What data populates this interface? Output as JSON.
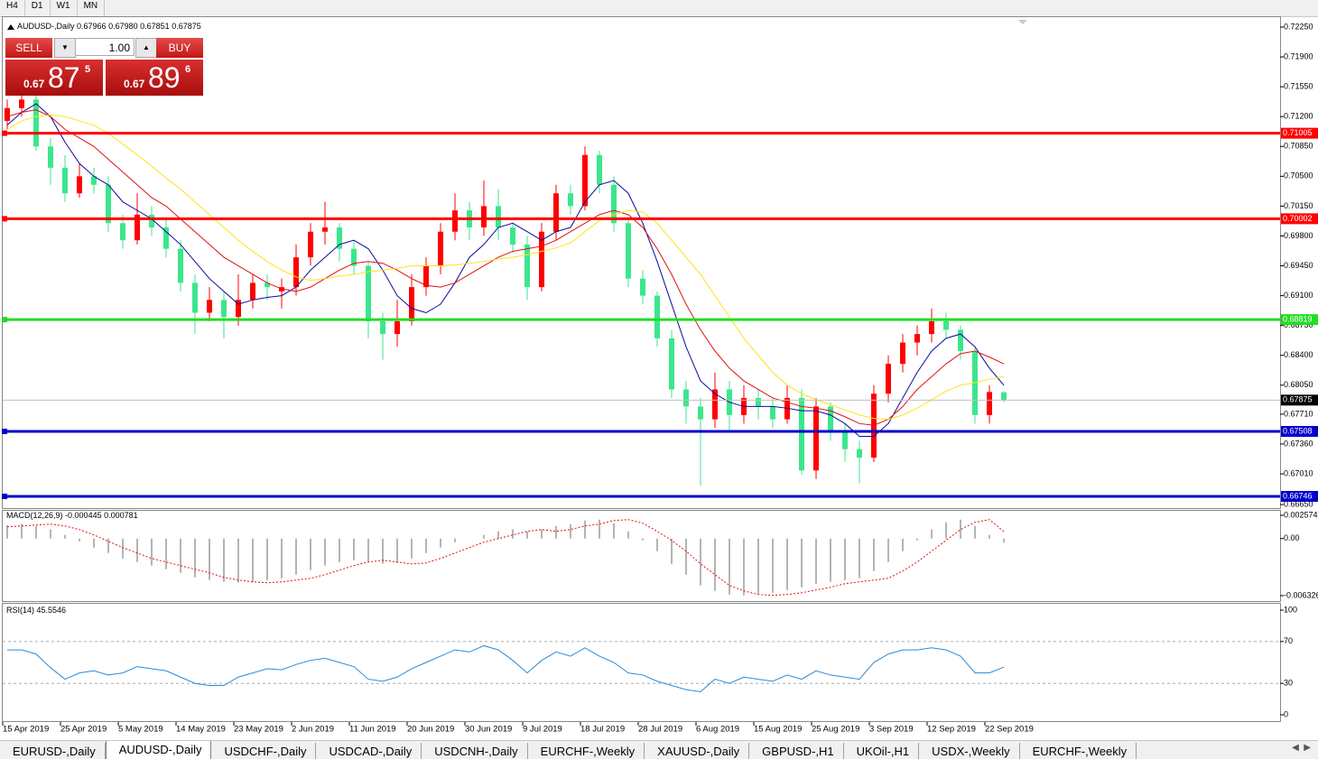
{
  "timeframes": [
    "H4",
    "D1",
    "W1",
    "MN"
  ],
  "header": {
    "title": "AUDUSD-,Daily",
    "ohlc": [
      "0.67966",
      "0.67980",
      "0.67851",
      "0.67875"
    ]
  },
  "trade_panel": {
    "sell": "SELL",
    "buy": "BUY",
    "lot": "1.00",
    "sell_price": {
      "prefix": "0.67",
      "big": "87",
      "small": "5"
    },
    "buy_price": {
      "prefix": "0.67",
      "big": "89",
      "small": "6"
    }
  },
  "tabs": {
    "items": [
      "EURUSD-,Daily",
      "AUDUSD-,Daily",
      "USDCHF-,Daily",
      "USDCAD-,Daily",
      "USDCNH-,Daily",
      "EURCHF-,Weekly",
      "XAUUSD-,Daily",
      "GBPUSD-,H1",
      "UKOil-,H1",
      "USDX-,Weekly",
      "EURCHF-,Weekly"
    ],
    "active": 1
  },
  "chart_data": {
    "type": "candlestick",
    "categories": [
      "15 Apr 2019",
      null,
      null,
      null,
      "25 Apr 2019",
      null,
      null,
      null,
      "5 May 2019",
      null,
      null,
      null,
      "14 May 2019",
      null,
      null,
      null,
      "23 May 2019",
      null,
      null,
      null,
      "2 Jun 2019",
      null,
      null,
      null,
      "11 Jun 2019",
      null,
      null,
      null,
      "20 Jun 2019",
      null,
      null,
      null,
      "30 Jun 2019",
      null,
      null,
      null,
      "9 Jul 2019",
      null,
      null,
      null,
      "18 Jul 2019",
      null,
      null,
      null,
      "28 Jul 2019",
      null,
      null,
      null,
      "6 Aug 2019",
      null,
      null,
      null,
      "15 Aug 2019",
      null,
      null,
      null,
      "25 Aug 2019",
      null,
      null,
      null,
      "3 Sep 2019",
      null,
      null,
      null,
      "12 Sep 2019",
      null,
      null,
      null,
      "22 Sep 2019",
      null
    ],
    "up_color": "#ff0000",
    "down_color": "#3ce68c",
    "candles": {
      "open": [
        0.7115,
        0.713,
        0.714,
        0.7085,
        0.706,
        0.703,
        0.705,
        0.704,
        0.6995,
        0.6975,
        0.7005,
        0.699,
        0.6965,
        0.6925,
        0.689,
        0.6905,
        0.6885,
        0.6905,
        0.6925,
        0.6915,
        0.692,
        0.6955,
        0.6985,
        0.699,
        0.6965,
        0.6945,
        0.688,
        0.6865,
        0.688,
        0.692,
        0.6945,
        0.6985,
        0.701,
        0.699,
        0.7015,
        0.699,
        0.697,
        0.692,
        0.6985,
        0.703,
        0.7015,
        0.7075,
        0.704,
        0.6995,
        0.693,
        0.691,
        0.686,
        0.68,
        0.678,
        0.6765,
        0.68,
        0.677,
        0.679,
        0.678,
        0.6765,
        0.679,
        0.6705,
        0.678,
        0.675,
        0.673,
        0.672,
        0.6795,
        0.683,
        0.6855,
        0.6865,
        0.688,
        0.687,
        0.6845,
        0.677,
        0.67966
      ],
      "high": [
        0.714,
        0.715,
        0.7148,
        0.7095,
        0.7075,
        0.7065,
        0.706,
        0.705,
        0.7005,
        0.703,
        0.7015,
        0.7,
        0.6975,
        0.6935,
        0.692,
        0.6915,
        0.6935,
        0.6935,
        0.6935,
        0.693,
        0.697,
        0.6995,
        0.702,
        0.6995,
        0.6975,
        0.695,
        0.689,
        0.6905,
        0.6935,
        0.6955,
        0.6995,
        0.703,
        0.702,
        0.7045,
        0.7035,
        0.6995,
        0.698,
        0.6995,
        0.704,
        0.704,
        0.7085,
        0.708,
        0.705,
        0.7,
        0.694,
        0.6915,
        0.687,
        0.681,
        0.679,
        0.682,
        0.681,
        0.6805,
        0.68,
        0.679,
        0.6805,
        0.68,
        0.679,
        0.6785,
        0.676,
        0.674,
        0.6805,
        0.684,
        0.6865,
        0.6875,
        0.6895,
        0.689,
        0.6875,
        0.685,
        0.6805,
        0.6798
      ],
      "low": [
        0.7105,
        0.712,
        0.708,
        0.704,
        0.702,
        0.7025,
        0.703,
        0.6985,
        0.6965,
        0.697,
        0.698,
        0.6955,
        0.6915,
        0.6865,
        0.688,
        0.686,
        0.6875,
        0.6895,
        0.6905,
        0.6895,
        0.691,
        0.6945,
        0.697,
        0.695,
        0.6935,
        0.686,
        0.6835,
        0.685,
        0.6875,
        0.691,
        0.6935,
        0.6975,
        0.6975,
        0.698,
        0.6975,
        0.696,
        0.6905,
        0.6915,
        0.6975,
        0.7005,
        0.701,
        0.703,
        0.6985,
        0.692,
        0.69,
        0.685,
        0.679,
        0.676,
        0.6687,
        0.6755,
        0.675,
        0.676,
        0.6765,
        0.6755,
        0.676,
        0.67,
        0.6695,
        0.674,
        0.6715,
        0.669,
        0.6715,
        0.6785,
        0.682,
        0.684,
        0.6855,
        0.686,
        0.6835,
        0.676,
        0.676,
        0.67851
      ],
      "close": [
        0.713,
        0.714,
        0.7085,
        0.706,
        0.703,
        0.705,
        0.704,
        0.6995,
        0.6975,
        0.7005,
        0.699,
        0.6965,
        0.6925,
        0.689,
        0.6905,
        0.6885,
        0.6905,
        0.6925,
        0.692,
        0.692,
        0.6955,
        0.6985,
        0.699,
        0.6965,
        0.6945,
        0.688,
        0.6865,
        0.688,
        0.692,
        0.6945,
        0.6985,
        0.701,
        0.699,
        0.7015,
        0.699,
        0.697,
        0.692,
        0.6985,
        0.703,
        0.7015,
        0.7075,
        0.704,
        0.6995,
        0.693,
        0.691,
        0.686,
        0.68,
        0.678,
        0.6765,
        0.68,
        0.677,
        0.679,
        0.678,
        0.6765,
        0.679,
        0.6705,
        0.678,
        0.675,
        0.673,
        0.672,
        0.6795,
        0.683,
        0.6855,
        0.6865,
        0.688,
        0.687,
        0.6845,
        0.677,
        0.6797,
        0.67875
      ]
    },
    "moving_averages": [
      {
        "color": "#0a0aa0",
        "values": [
          0.711,
          0.7125,
          0.7135,
          0.712,
          0.709,
          0.7065,
          0.705,
          0.704,
          0.702,
          0.701,
          0.7,
          0.6985,
          0.697,
          0.695,
          0.693,
          0.6915,
          0.69,
          0.6905,
          0.6908,
          0.691,
          0.692,
          0.694,
          0.6955,
          0.697,
          0.6975,
          0.6965,
          0.694,
          0.691,
          0.6895,
          0.689,
          0.69,
          0.6925,
          0.6955,
          0.697,
          0.699,
          0.6995,
          0.6985,
          0.6975,
          0.6985,
          0.699,
          0.702,
          0.704,
          0.7045,
          0.703,
          0.6995,
          0.695,
          0.69,
          0.685,
          0.681,
          0.6795,
          0.6785,
          0.678,
          0.678,
          0.678,
          0.6778,
          0.6775,
          0.6775,
          0.677,
          0.676,
          0.6745,
          0.6745,
          0.676,
          0.679,
          0.682,
          0.6845,
          0.686,
          0.6865,
          0.685,
          0.6825,
          0.6805
        ]
      },
      {
        "color": "#e01010",
        "values": [
          0.712,
          0.7125,
          0.7128,
          0.712,
          0.7105,
          0.7095,
          0.7085,
          0.707,
          0.7055,
          0.704,
          0.7025,
          0.7015,
          0.7,
          0.6985,
          0.697,
          0.6955,
          0.6945,
          0.6935,
          0.6925,
          0.6918,
          0.6915,
          0.692,
          0.693,
          0.694,
          0.6948,
          0.695,
          0.6948,
          0.694,
          0.693,
          0.6922,
          0.692,
          0.6925,
          0.6935,
          0.6945,
          0.6955,
          0.6962,
          0.6965,
          0.6968,
          0.6975,
          0.6985,
          0.6995,
          0.7005,
          0.701,
          0.7005,
          0.699,
          0.6965,
          0.6935,
          0.69,
          0.687,
          0.6845,
          0.6825,
          0.681,
          0.68,
          0.679,
          0.6785,
          0.678,
          0.6778,
          0.6775,
          0.6768,
          0.676,
          0.6758,
          0.6765,
          0.678,
          0.68,
          0.6815,
          0.683,
          0.6842,
          0.6845,
          0.6838,
          0.683
        ]
      },
      {
        "color": "#ffe21a",
        "values": [
          0.7105,
          0.7115,
          0.712,
          0.7122,
          0.712,
          0.7115,
          0.711,
          0.71,
          0.7088,
          0.7075,
          0.7062,
          0.7048,
          0.7035,
          0.702,
          0.7005,
          0.699,
          0.6975,
          0.6962,
          0.695,
          0.694,
          0.6932,
          0.6928,
          0.693,
          0.6933,
          0.6935,
          0.6938,
          0.694,
          0.6942,
          0.6945,
          0.6945,
          0.6945,
          0.6946,
          0.6948,
          0.695,
          0.6953,
          0.6955,
          0.6958,
          0.6962,
          0.6966,
          0.6972,
          0.6985,
          0.6998,
          0.7005,
          0.701,
          0.7008,
          0.6995,
          0.6975,
          0.6955,
          0.6935,
          0.691,
          0.6885,
          0.686,
          0.684,
          0.682,
          0.6805,
          0.6795,
          0.6788,
          0.6782,
          0.6776,
          0.677,
          0.6766,
          0.6765,
          0.677,
          0.6778,
          0.6788,
          0.6798,
          0.6805,
          0.6808,
          0.6812,
          0.6815
        ]
      }
    ],
    "levels": [
      {
        "value": 0.71005,
        "color": "#ff0000"
      },
      {
        "value": 0.70002,
        "color": "#ff0000"
      },
      {
        "value": 0.68819,
        "color": "#22dd22"
      },
      {
        "value": 0.67508,
        "color": "#0000cc"
      },
      {
        "value": 0.66746,
        "color": "#0000cc"
      }
    ],
    "ylim": [
      0.66619,
      0.72377
    ],
    "yticks": [
      {
        "value": 0.7225,
        "label": "0.72250"
      },
      {
        "value": 0.719,
        "label": "0.71900"
      },
      {
        "value": 0.7155,
        "label": "0.71550"
      },
      {
        "value": 0.712,
        "label": "0.71200"
      },
      {
        "value": 0.7085,
        "label": "0.70850"
      },
      {
        "value": 0.705,
        "label": "0.70500"
      },
      {
        "value": 0.7015,
        "label": "0.70150"
      },
      {
        "value": 0.698,
        "label": "0.69800"
      },
      {
        "value": 0.6945,
        "label": "0.69450"
      },
      {
        "value": 0.691,
        "label": "0.69100"
      },
      {
        "value": 0.6875,
        "label": "0.68750"
      },
      {
        "value": 0.684,
        "label": "0.68400"
      },
      {
        "value": 0.6805,
        "label": "0.68050"
      },
      {
        "value": 0.6771,
        "label": "0.67710"
      },
      {
        "value": 0.6736,
        "label": "0.67360"
      },
      {
        "value": 0.6701,
        "label": "0.67010"
      },
      {
        "value": 0.6665,
        "label": "0.66650"
      }
    ],
    "macd": {
      "title": "MACD(12,26,9)",
      "ylim": [
        -0.006826,
        0.003174
      ],
      "yticks": [
        0.002574,
        {
          "value": 0,
          "label": "0.00"
        },
        -0.006326
      ],
      "histogram": {
        "color": "#b4b4b4",
        "values": [
          0.0015,
          0.0016,
          0.0014,
          0.001,
          0.0004,
          -0.0003,
          -0.001,
          -0.0016,
          -0.0022,
          -0.0026,
          -0.003,
          -0.0034,
          -0.0038,
          -0.0043,
          -0.0046,
          -0.0048,
          -0.0049,
          -0.0048,
          -0.0046,
          -0.0044,
          -0.004,
          -0.0035,
          -0.003,
          -0.0026,
          -0.0024,
          -0.0026,
          -0.0028,
          -0.0027,
          -0.0022,
          -0.0016,
          -0.001,
          -0.0004,
          0.0,
          0.0004,
          0.0008,
          0.001,
          0.0008,
          0.001,
          0.0014,
          0.0016,
          0.002,
          0.0021,
          0.0017,
          0.0008,
          -0.0002,
          -0.0014,
          -0.0028,
          -0.004,
          -0.0052,
          -0.0058,
          -0.0062,
          -0.0063,
          -0.0062,
          -0.006,
          -0.0057,
          -0.0054,
          -0.005,
          -0.0048,
          -0.0046,
          -0.0044,
          -0.0036,
          -0.0026,
          -0.0014,
          -0.0002,
          0.001,
          0.0018,
          0.0021,
          0.0014,
          0.0004,
          -0.000445
        ]
      },
      "signal": {
        "color": "#e01010",
        "values": [
          0.0013,
          0.0014,
          0.0015,
          0.0016,
          0.0014,
          0.001,
          0.0004,
          -0.0003,
          -0.001,
          -0.0016,
          -0.0022,
          -0.0026,
          -0.003,
          -0.0034,
          -0.0038,
          -0.0043,
          -0.0046,
          -0.0048,
          -0.0049,
          -0.0048,
          -0.0046,
          -0.0044,
          -0.004,
          -0.0035,
          -0.003,
          -0.0026,
          -0.0024,
          -0.0026,
          -0.0028,
          -0.0027,
          -0.0022,
          -0.0016,
          -0.001,
          -0.0004,
          0.0,
          0.0004,
          0.0008,
          0.001,
          0.0008,
          0.001,
          0.0014,
          0.0016,
          0.002,
          0.0021,
          0.0017,
          0.0008,
          -0.0002,
          -0.0014,
          -0.0028,
          -0.004,
          -0.0052,
          -0.0058,
          -0.0062,
          -0.0063,
          -0.0062,
          -0.006,
          -0.0057,
          -0.0054,
          -0.005,
          -0.0048,
          -0.0046,
          -0.0044,
          -0.0036,
          -0.0026,
          -0.0014,
          -0.0002,
          0.001,
          0.0018,
          0.0021,
          0.000781
        ]
      }
    },
    "rsi": {
      "title": "RSI(14)",
      "color": "#2a8ad8",
      "ylim": [
        -6.9,
        105.2
      ],
      "yticks": [
        100,
        70,
        30,
        0
      ],
      "levels": [
        70,
        30
      ],
      "values": [
        62,
        62,
        58,
        45,
        34,
        40,
        42,
        38,
        40,
        46,
        44,
        42,
        36,
        30,
        28,
        28,
        36,
        40,
        44,
        43,
        48,
        52,
        54,
        50,
        46,
        34,
        32,
        36,
        44,
        50,
        56,
        62,
        60,
        66,
        62,
        52,
        40,
        52,
        60,
        56,
        64,
        56,
        50,
        40,
        38,
        32,
        28,
        24,
        22,
        34,
        30,
        36,
        34,
        32,
        38,
        34,
        42,
        38,
        36,
        34,
        50,
        58,
        62,
        62,
        64,
        62,
        56,
        40,
        40,
        45.5546
      ]
    }
  }
}
